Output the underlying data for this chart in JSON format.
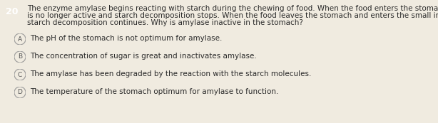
{
  "question_number": "20",
  "question_number_bg": "#4e5d6c",
  "question_number_color": "#ffffff",
  "background_color": "#f0ebe0",
  "question_text_line1": "The enzyme amylase begins reacting with starch during the chewing of food. When the food enters the stomach, amylase",
  "question_text_line2": "is no longer active and starch decomposition stops. When the food leaves the stomach and enters the small intestine,",
  "question_text_line3": "starch decomposition continues. Why is amylase inactive in the stomach?",
  "options": [
    {
      "label": "A",
      "text": "The pH of the stomach is not optimum for amylase."
    },
    {
      "label": "B",
      "text": "The concentration of sugar is great and inactivates amylase."
    },
    {
      "label": "C",
      "text": "The amylase has been degraded by the reaction with the starch molecules."
    },
    {
      "label": "D",
      "text": "The temperature of the stomach optimum for amylase to function."
    }
  ],
  "option_circle_facecolor": "#f0ebe0",
  "option_circle_edge": "#999999",
  "option_label_color": "#555555",
  "question_font_size": 7.5,
  "option_font_size": 7.5,
  "text_color": "#2a2a2a",
  "qnum_font_size": 9
}
